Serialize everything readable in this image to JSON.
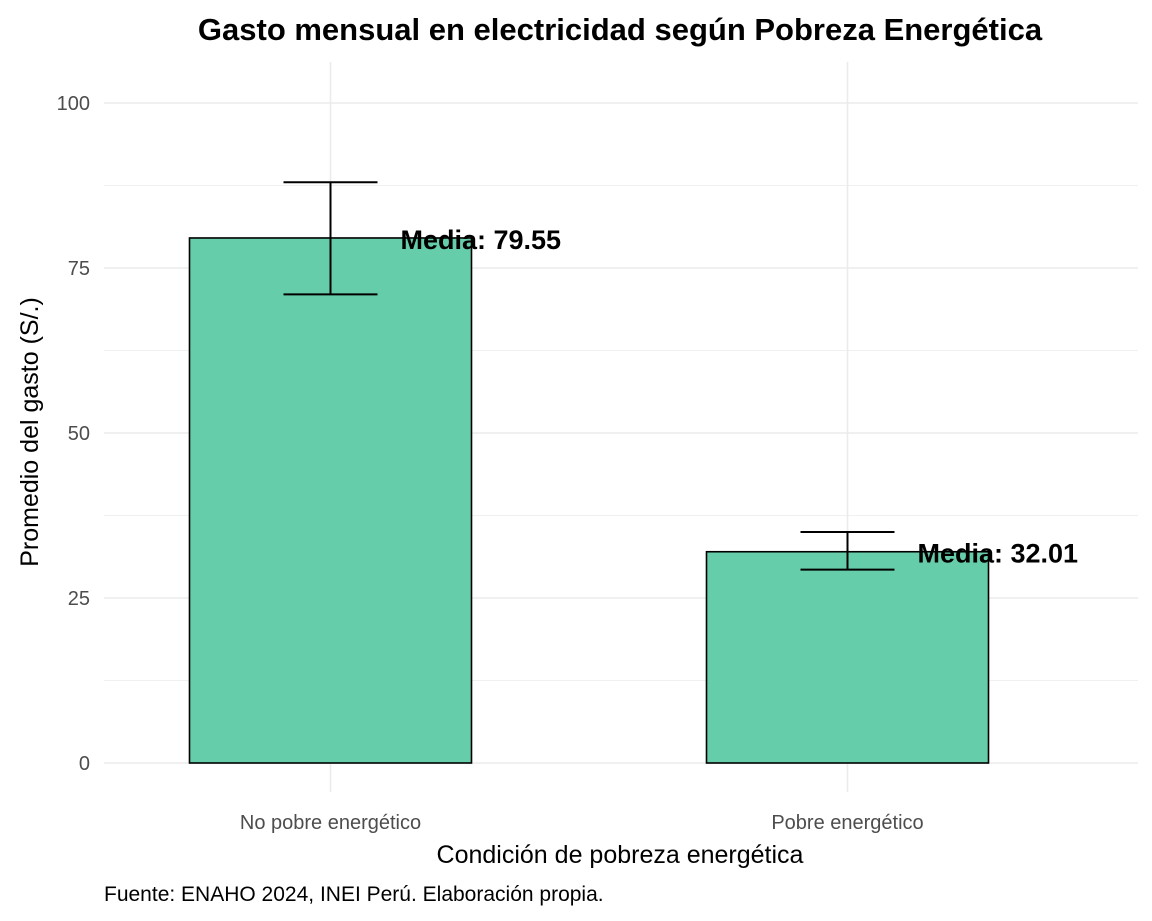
{
  "chart_data": {
    "type": "bar",
    "title": "Gasto mensual en electricidad según Pobreza Energética",
    "xlabel": "Condición de pobreza energética",
    "ylabel": "Promedio del gasto (S/.)",
    "caption": "Fuente: ENAHO 2024, INEI Perú. Elaboración propia.",
    "categories": [
      "No pobre energético",
      "Pobre energético"
    ],
    "values": [
      79.55,
      32.01
    ],
    "error_low": [
      71.0,
      29.3
    ],
    "error_high": [
      88.0,
      35.0
    ],
    "data_labels": [
      "Media: 79.55",
      "Media: 32.01"
    ],
    "ylim": [
      -4,
      105
    ],
    "yticks": [
      0,
      25,
      50,
      75,
      100
    ],
    "ytick_labels": [
      "0",
      "25",
      "50",
      "75",
      "100"
    ],
    "grid": true,
    "bar_color": "#66CDAA",
    "bar_edge_color": "#000000",
    "grid_color": "#EBEBEB"
  }
}
